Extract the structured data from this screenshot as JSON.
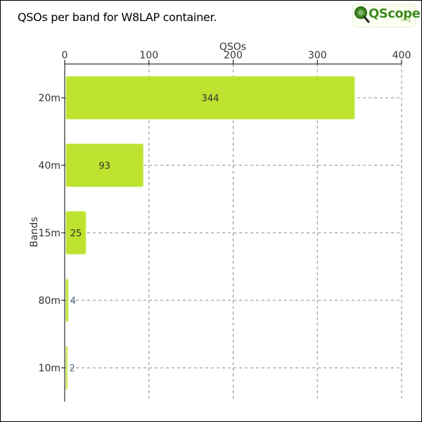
{
  "header": {
    "title": "QSOs per band for W8LAP container.",
    "logo_text": "QScope",
    "logo_sub": ".org"
  },
  "colors": {
    "bar": "#bde22f",
    "bar_edge": "#c9ec5a",
    "grid": "#888888",
    "axis": "#000000",
    "text": "#333333",
    "label_outside": "#4a6a8a",
    "logo_green": "#3f8a1f"
  },
  "chart_data": {
    "type": "bar",
    "orientation": "horizontal",
    "xlabel": "QSOs",
    "ylabel": "Bands",
    "xlim": [
      0,
      400
    ],
    "xticks": [
      0,
      100,
      200,
      300,
      400
    ],
    "x_axis_position": "top",
    "grid": true,
    "grid_style": "dashed",
    "categories": [
      "20m",
      "40m",
      "15m",
      "80m",
      "10m"
    ],
    "values": [
      344,
      93,
      25,
      4,
      2
    ]
  }
}
